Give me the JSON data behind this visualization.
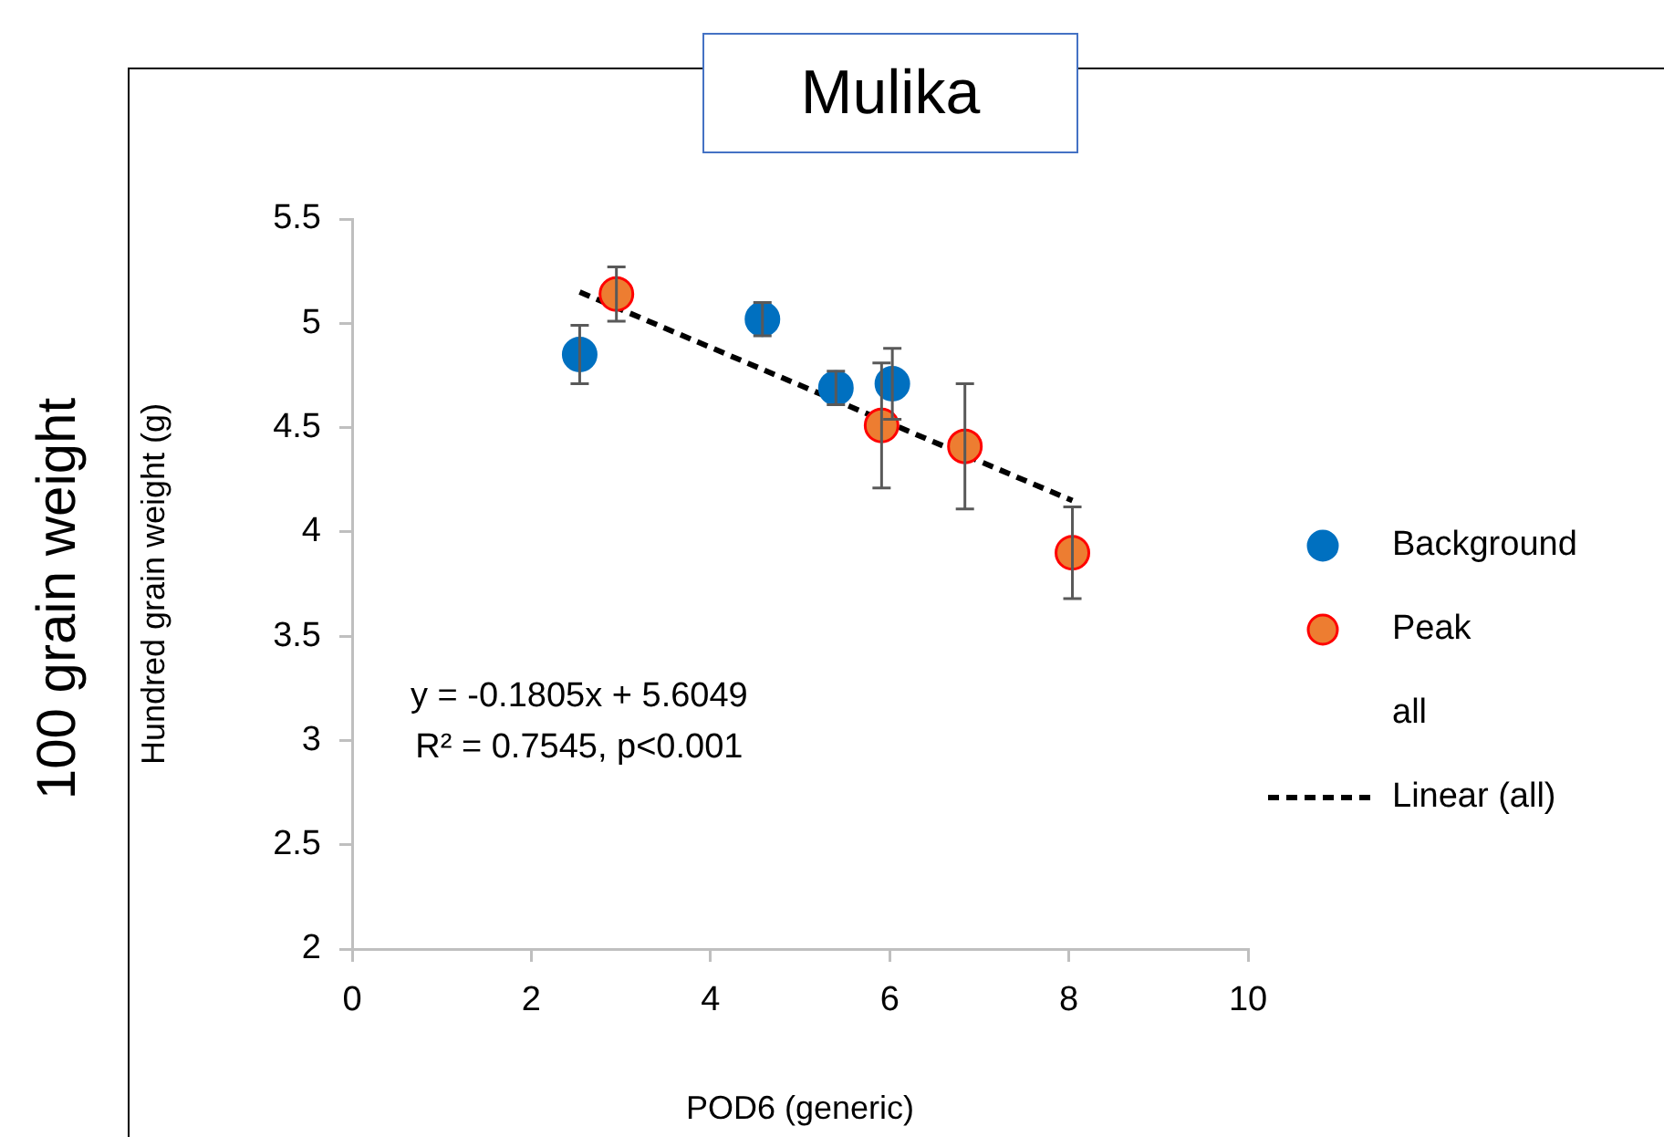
{
  "chart_data": {
    "type": "scatter",
    "title": "Mulika",
    "xlabel": "POD6 (generic)",
    "ylabel": "Hundred grain weight (g)",
    "annotations": [
      "100 grain weight",
      "y = -0.1805x + 5.6049",
      "R² = 0.7545, p<0.001",
      "all"
    ],
    "xlim": [
      0,
      10
    ],
    "xticks": [
      0,
      2,
      4,
      6,
      8,
      10
    ],
    "ylim": [
      2,
      5.5
    ],
    "yticks": [
      2,
      2.5,
      3,
      3.5,
      4,
      4.5,
      5,
      5.5
    ],
    "grid": false,
    "legend": "right",
    "marker": "circle",
    "series": [
      {
        "name": "Background",
        "color": "#0070c0",
        "x": [
          2.54,
          4.58,
          5.4,
          6.03
        ],
        "values": [
          4.85,
          5.02,
          4.69,
          4.71
        ],
        "errors": [
          0.14,
          0.08,
          0.08,
          0.17
        ]
      },
      {
        "name": "Peak",
        "color": "#ed7d31",
        "x": [
          2.95,
          5.91,
          6.84,
          8.04
        ],
        "values": [
          5.14,
          4.51,
          4.41,
          3.9
        ],
        "errors": [
          0.13,
          0.3,
          0.3,
          0.22
        ]
      },
      {
        "name": "Linear (all)",
        "type": "line",
        "color": "#000000",
        "line_style": "dashed",
        "marker": "none",
        "x": [
          2.54,
          8.04
        ],
        "values": [
          5.15,
          4.15
        ]
      }
    ]
  }
}
